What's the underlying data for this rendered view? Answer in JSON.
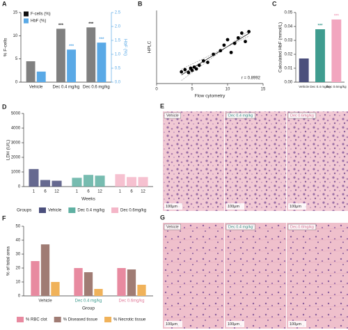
{
  "chart_data": [
    {
      "letter": "A",
      "type": "bar",
      "categories": [
        "Vehicle",
        "Dec 0.4 mg/kg",
        "Dec 0.6 mg/kg"
      ],
      "y_label": "% F-cells",
      "y2_label": "HbF (%)",
      "ylim": [
        0,
        15
      ],
      "yticks": [
        0,
        5,
        10,
        15
      ],
      "y2lim": [
        0,
        2.5
      ],
      "y2ticks": [
        {
          "value": 0,
          "label": "0.0"
        },
        0.5,
        {
          "value": 1,
          "label": "1.0"
        },
        1.5,
        {
          "value": 2,
          "label": "2.0"
        },
        2.5
      ],
      "legend": "upper left",
      "series": [
        {
          "name": "F-cells (%)",
          "color": "#808080",
          "values": [
            4.5,
            11.5,
            11.8
          ],
          "annotations": [
            null,
            "***",
            "***"
          ]
        },
        {
          "name": "HbF (%)",
          "color": "#5aa9e6",
          "axis": "y2",
          "values": [
            0.38,
            1.17,
            1.42
          ],
          "annotations": [
            null,
            "***",
            "***"
          ]
        }
      ]
    },
    {
      "letter": "B",
      "type": "scatter",
      "x_label": "Flow cytometry",
      "y_label": "HPLC",
      "xlim": [
        0,
        15
      ],
      "xticks": [
        0,
        5,
        10,
        15
      ],
      "ylim": [
        0,
        2
      ],
      "annotation": "r = 0.8992",
      "color": "#000000",
      "x": [
        3.5,
        4.0,
        4.5,
        4.8,
        5.0,
        5.3,
        5.6,
        6.0,
        6.6,
        7.2,
        8.0,
        9.0,
        9.5,
        10.0,
        10.5,
        11.0,
        11.5,
        12.0,
        12.5,
        13.0
      ],
      "y": [
        0.32,
        0.38,
        0.3,
        0.42,
        0.36,
        0.45,
        0.4,
        0.5,
        0.62,
        0.58,
        0.8,
        0.9,
        1.05,
        1.2,
        0.85,
        1.1,
        1.25,
        1.38,
        1.15,
        1.42
      ]
    },
    {
      "letter": "C",
      "type": "bar",
      "categories": [
        "Vehicle",
        "Dec 0.4 mg/kg",
        "Dec 0.6mg/kg"
      ],
      "y_label": "Calculated HbF (mmol/L)",
      "ylim": [
        0,
        0.05
      ],
      "yticks": [
        {
          "value": 0,
          "label": "0.00"
        },
        0.01,
        0.02,
        0.03,
        0.04,
        0.05
      ],
      "values": [
        0.017,
        0.038,
        0.045
      ],
      "colors": [
        "#4b4f7c",
        "#3f9c8f",
        "#f2a6bf"
      ],
      "annotations": [
        null,
        "***",
        "***"
      ]
    },
    {
      "letter": "D",
      "type": "bar",
      "grouping": "series",
      "categories": [
        "1",
        "6",
        "12"
      ],
      "x_label": "Weeks",
      "y_label": "LDH (U/L)",
      "ylim": [
        0,
        5000
      ],
      "yticks": [
        0,
        1000,
        2000,
        3000,
        4000,
        5000
      ],
      "legend_title": "Groups",
      "legend": "bottom",
      "series": [
        {
          "name": "Vehicle",
          "color": "#4b4f7c",
          "values": [
            1200,
            450,
            400
          ]
        },
        {
          "name": "Dec 0.4 mg/kg",
          "color": "#5fb0a2",
          "values": [
            600,
            800,
            750
          ]
        },
        {
          "name": "Dec 0.6mg/kg",
          "color": "#f4b6c8",
          "values": [
            850,
            650,
            650
          ]
        }
      ]
    },
    {
      "letter": "F",
      "type": "bar",
      "categories": [
        "Vehicle",
        "Dec 0.4 mg/kg",
        "Dec 0.6mg/kg"
      ],
      "category_colors": [
        "#333333",
        "#3f9c8f",
        "#e07a98"
      ],
      "x_label": "Group",
      "y_label": "% of total area",
      "ylim": [
        0,
        50
      ],
      "yticks": [
        0,
        10,
        20,
        30,
        40,
        50
      ],
      "legend": "bottom",
      "series": [
        {
          "name": "% RBC clot",
          "color": "#e88aa0",
          "values": [
            25,
            20,
            20
          ]
        },
        {
          "name": "% Diseased tissue",
          "color": "#a07c74",
          "values": [
            37,
            17,
            19
          ]
        },
        {
          "name": "% Necrotic tissue",
          "color": "#f0b25a",
          "values": [
            10,
            5,
            8
          ]
        }
      ]
    }
  ],
  "images": [
    {
      "letter": "E",
      "labels": [
        "Vehicle",
        "Dec 0.4 mg/kg",
        "Dec 0.6mg/kg"
      ],
      "scale_bar": "100μm"
    },
    {
      "letter": "G",
      "labels": [
        "Vehicle",
        "Dec 0.4 mg/kg",
        "Dec 0.6mg/kg"
      ],
      "scale_bar": "100μm"
    }
  ]
}
